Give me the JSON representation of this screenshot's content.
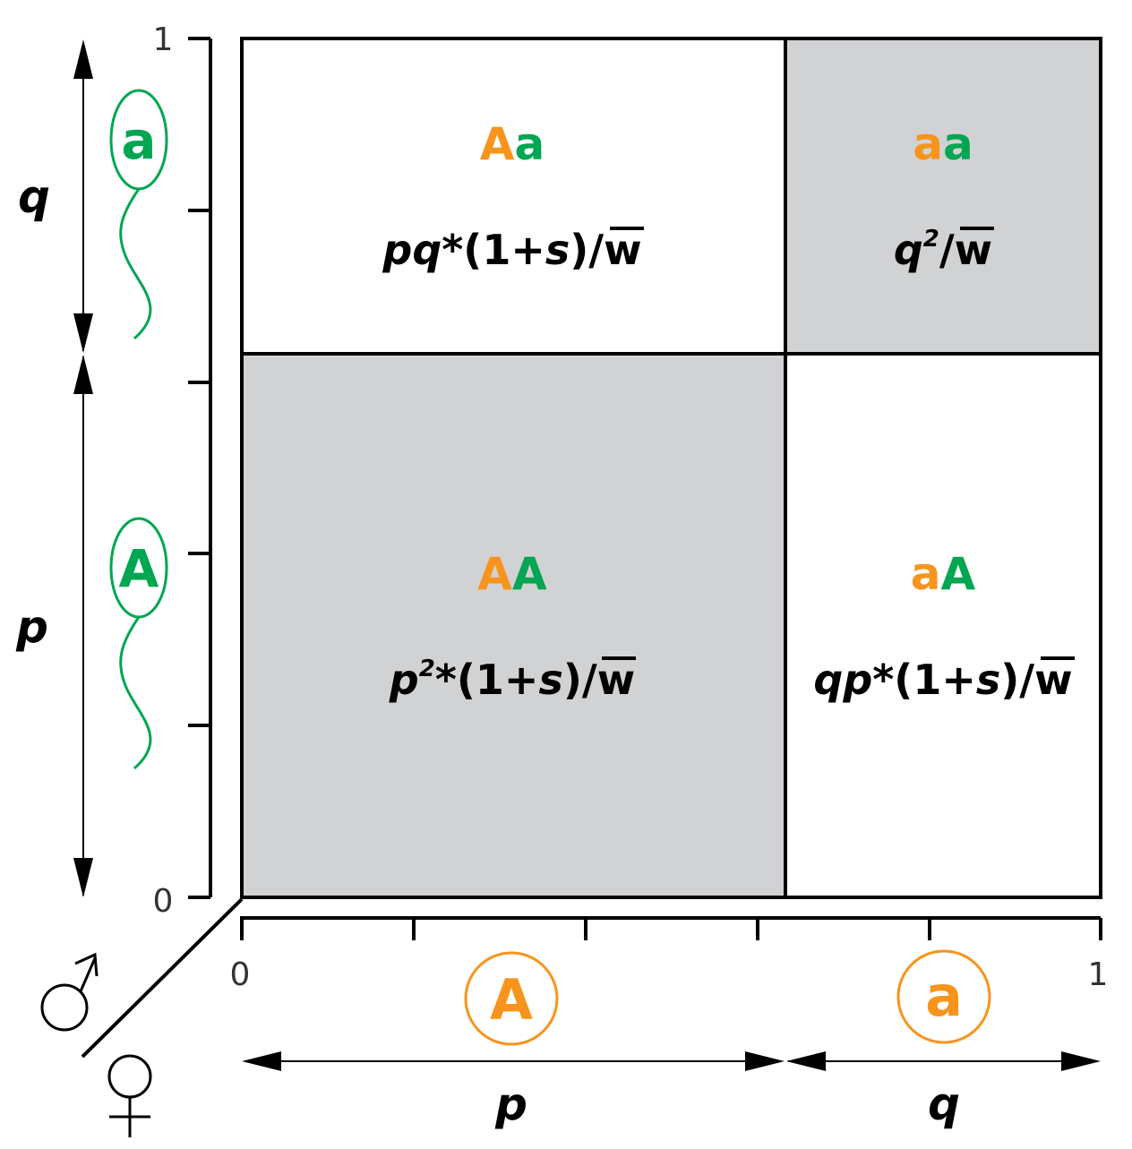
{
  "colors": {
    "orange": "#F7941D",
    "green": "#00A651",
    "shade": "#D1D2D4",
    "line": "#000000"
  },
  "y_axis": {
    "tick_top": "1",
    "tick_bottom": "0",
    "q_label": "q",
    "p_label": "p",
    "allele_top": "a",
    "allele_bottom": "A",
    "sex_symbol": "♂"
  },
  "x_axis": {
    "tick_left": "0",
    "tick_right": "1",
    "p_label": "p",
    "q_label": "q",
    "allele_left": "A",
    "allele_right": "a",
    "sex_symbol": "♀"
  },
  "cells": {
    "top_left": {
      "g1": "A",
      "g2": "a",
      "f1": "pq",
      "f2": "*(1+",
      "f3": "s",
      "f4": ")/",
      "wbar": "w"
    },
    "top_right": {
      "g1": "a",
      "g2": "a",
      "f1": "q",
      "sup": "2",
      "f2": "/",
      "wbar": "w"
    },
    "bottom_left": {
      "g1": "A",
      "g2": "A",
      "f1": "p",
      "sup": "2",
      "f2": "*(1+",
      "f3": "s",
      "f4": ")/",
      "wbar": "w"
    },
    "bottom_right": {
      "g1": "a",
      "g2": "A",
      "f1": "qp",
      "f2": "*(1+",
      "f3": "s",
      "f4": ")/",
      "wbar": "w"
    }
  }
}
